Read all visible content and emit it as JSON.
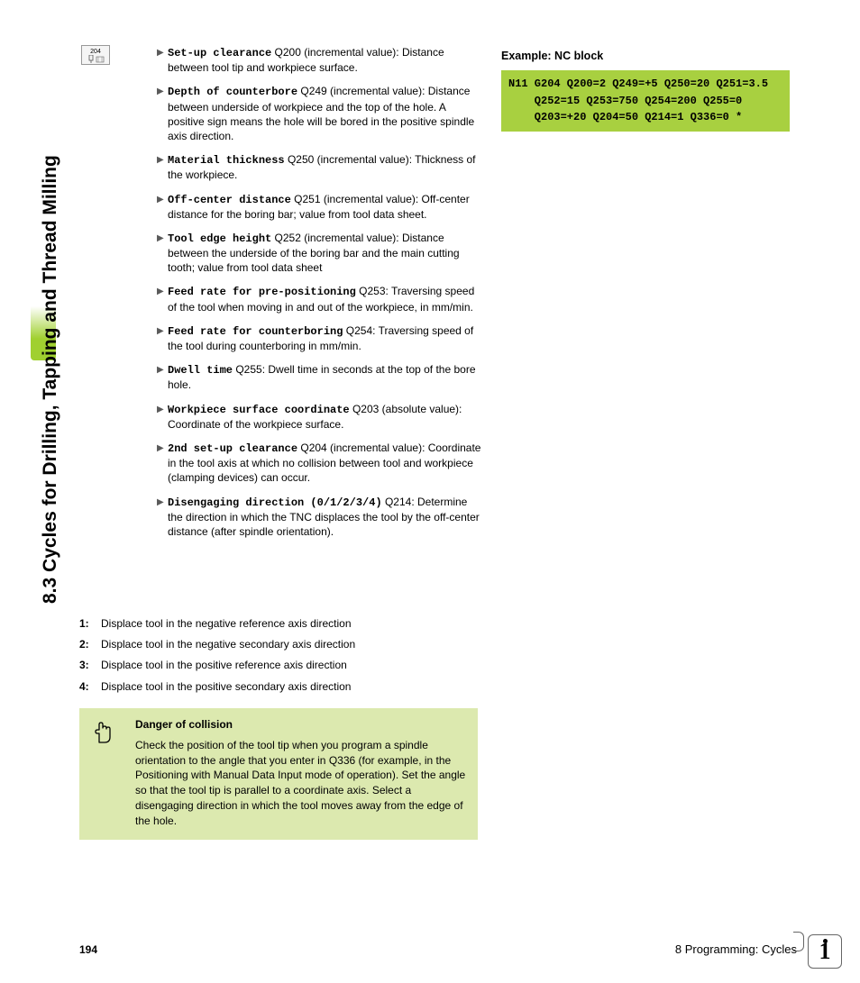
{
  "side_title": "8.3 Cycles for Drilling, Tapping and Thread Milling",
  "cycle_icon_label": "204",
  "params": [
    {
      "label": "Set-up clearance",
      "text": " Q200 (incremental value): Distance between tool tip and workpiece surface."
    },
    {
      "label": "Depth of counterbore",
      "text": " Q249 (incremental value): Distance between underside of workpiece and the top of the hole. A positive sign means the hole will be bored in the positive spindle axis direction."
    },
    {
      "label": "Material thickness",
      "text": " Q250 (incremental value): Thickness of the workpiece."
    },
    {
      "label": "Off-center distance",
      "text": " Q251 (incremental value): Off-center distance for the boring bar; value from tool data sheet."
    },
    {
      "label": "Tool edge height",
      "text": " Q252 (incremental value): Distance between the underside of the boring bar and the main cutting tooth; value from tool data sheet"
    },
    {
      "label": "Feed rate for pre-positioning",
      "text": " Q253: Traversing speed of the tool when moving in and out of the workpiece, in mm/min."
    },
    {
      "label": "Feed rate for counterboring",
      "text": " Q254: Traversing speed of the tool during counterboring in mm/min."
    },
    {
      "label": "Dwell time",
      "text": " Q255: Dwell time in seconds at the top of the bore hole."
    },
    {
      "label": "Workpiece surface coordinate",
      "text": " Q203 (absolute value): Coordinate of the workpiece surface."
    },
    {
      "label": "2nd set-up clearance",
      "text": " Q204 (incremental value): Coordinate in the tool axis at which no collision between tool and workpiece (clamping devices) can occur."
    },
    {
      "label": "Disengaging direction (0/1/2/3/4)",
      "text": " Q214: Determine the direction in which the TNC displaces the tool by the off-center distance (after spindle orientation)."
    }
  ],
  "num_items": [
    {
      "n": "1:",
      "text": "Displace tool in the negative reference axis direction"
    },
    {
      "n": "2:",
      "text": "Displace tool in the negative secondary axis direction"
    },
    {
      "n": "3:",
      "text": "Displace tool in the positive reference axis direction"
    },
    {
      "n": "4:",
      "text": "Displace tool in the positive secondary axis direction"
    }
  ],
  "warning": {
    "title": "Danger of collision",
    "body": "Check the position of the tool tip when you program a spindle orientation to the angle that you enter in Q336 (for example, in the Positioning with Manual Data Input mode of operation). Set the angle so that the tool tip is parallel to a coordinate axis. Select a disengaging direction in which the tool moves away from the edge of the hole."
  },
  "example": {
    "title": "Example: NC block",
    "code": "N11 G204 Q200=2 Q249=+5 Q250=20 Q251=3.5\n    Q252=15 Q253=750 Q254=200 Q255=0\n    Q203=+20 Q204=50 Q214=1 Q336=0 *"
  },
  "page_number": "194",
  "footer_right": "8 Programming: Cycles",
  "info_glyph": "1"
}
